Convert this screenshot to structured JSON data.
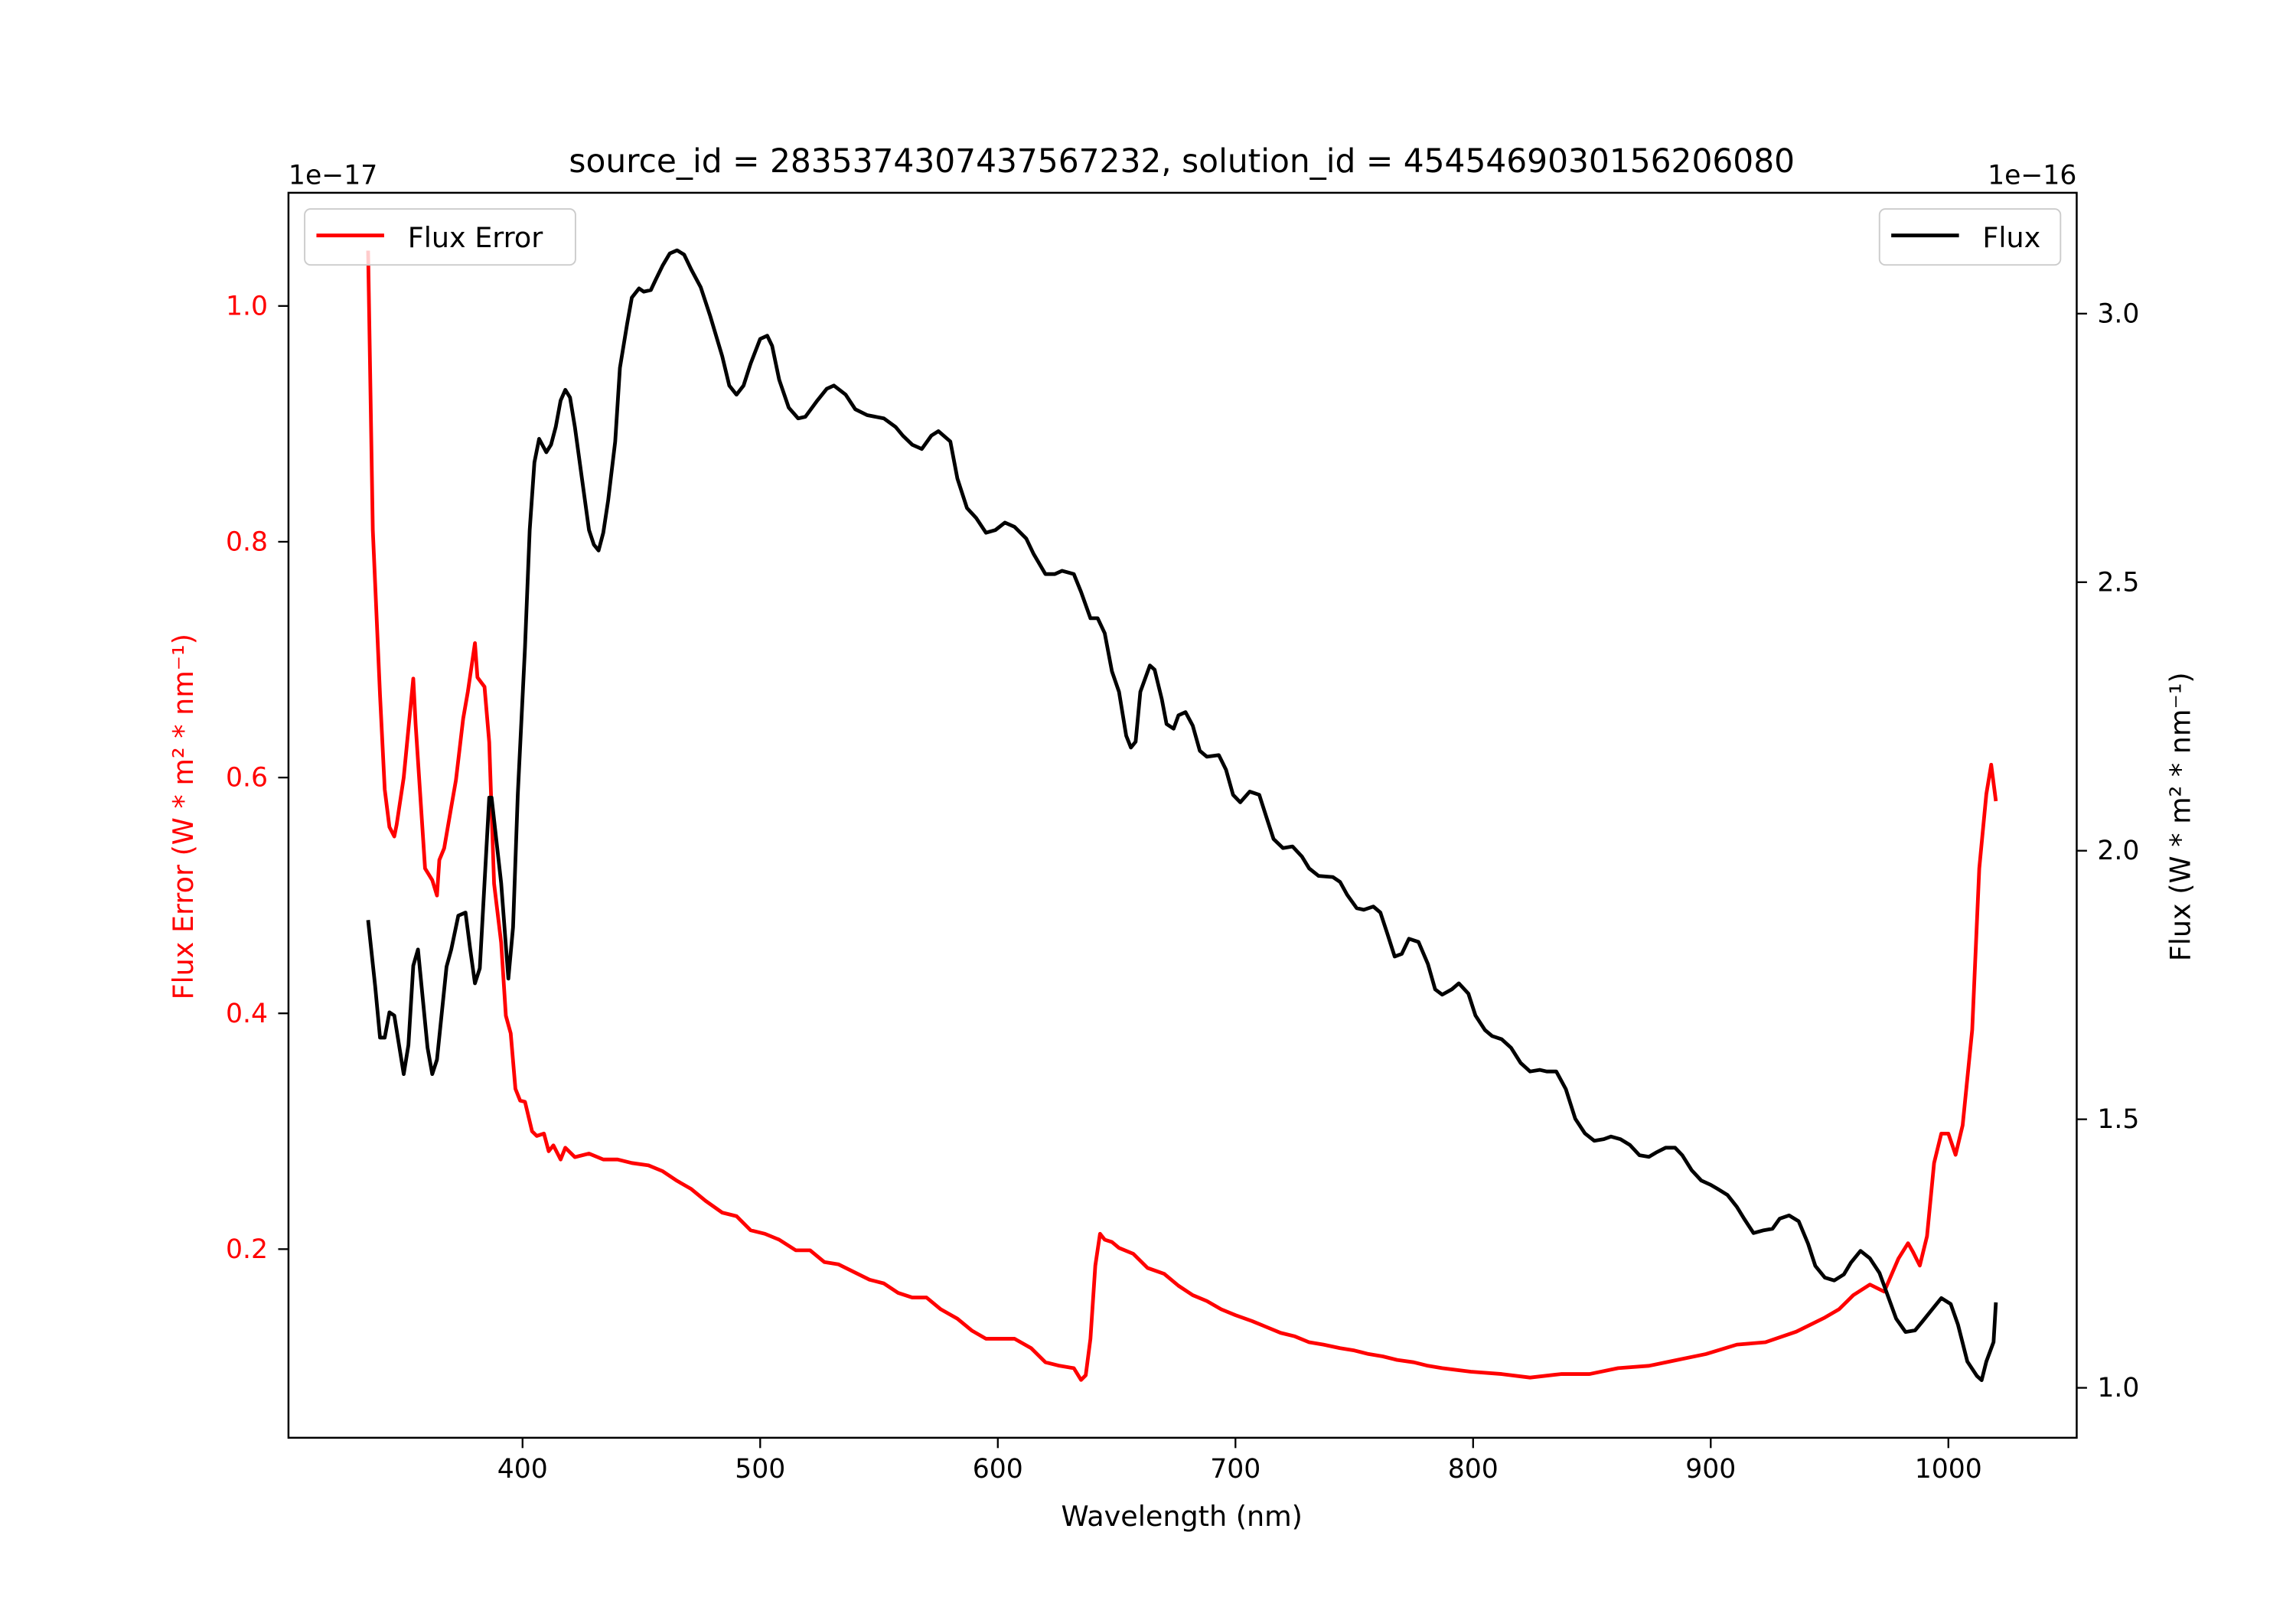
{
  "chart_data": {
    "type": "line",
    "title": "source_id = 2835374307437567232, solution_id = 4545469030156206080",
    "xlabel": "Wavelength (nm)",
    "ylabel_left": "Flux Error (W * m² * nm⁻¹)",
    "ylabel_right": "Flux (W * m² * nm⁻¹)",
    "offset_left": "1e−17",
    "offset_right": "1e−16",
    "xlim": [
      301.5,
      1054
    ],
    "ylim_left": [
      0.04,
      1.096
    ],
    "ylim_right": [
      0.907,
      3.225
    ],
    "x_ticks": [
      400,
      500,
      600,
      700,
      800,
      900,
      1000
    ],
    "x_tick_labels": [
      "400",
      "500",
      "600",
      "700",
      "800",
      "900",
      "1000"
    ],
    "left_ticks": [
      0.2,
      0.4,
      0.6,
      0.8,
      1.0
    ],
    "left_tick_labels": [
      "0.2",
      "0.4",
      "0.6",
      "0.8",
      "1.0"
    ],
    "right_ticks": [
      1.0,
      1.5,
      2.0,
      2.5,
      3.0
    ],
    "right_tick_labels": [
      "1.0",
      "1.5",
      "2.0",
      "2.5",
      "3.0"
    ],
    "grid": false,
    "legend_left": {
      "label": "Flux Error",
      "placement": "upper-left"
    },
    "legend_right": {
      "label": "Flux",
      "placement": "upper-right"
    },
    "series": [
      {
        "name": "Flux Error",
        "axis": "left",
        "color": "#ff0000",
        "x": [
          335,
          337,
          340,
          342,
          344,
          346,
          347,
          350,
          354,
          355,
          359,
          362,
          364,
          365,
          367,
          370,
          372,
          375,
          377,
          380,
          381,
          384,
          386,
          388,
          391,
          393,
          395,
          397,
          399,
          401,
          404,
          406,
          409,
          411,
          413,
          416,
          418,
          422,
          428,
          434,
          440,
          446,
          453,
          459,
          465,
          471,
          477,
          484,
          490,
          496,
          502,
          508,
          515,
          521,
          527,
          533,
          539,
          546,
          552,
          558,
          564,
          570,
          576,
          583,
          589,
          595,
          601,
          607,
          614,
          620,
          626,
          632,
          635,
          637,
          639,
          641,
          643,
          645,
          648,
          651,
          657,
          663,
          670,
          676,
          682,
          688,
          694,
          700,
          707,
          713,
          719,
          725,
          731,
          737,
          744,
          750,
          756,
          762,
          768,
          775,
          781,
          787,
          799,
          812,
          824,
          837,
          849,
          861,
          874,
          886,
          898,
          911,
          923,
          936,
          948,
          954,
          960,
          967,
          973,
          979,
          983,
          985,
          988,
          991,
          994,
          997,
          1000,
          1003,
          1006,
          1010,
          1013,
          1016,
          1018,
          1020
        ],
        "y": [
          1.047,
          0.81,
          0.67,
          0.59,
          0.558,
          0.55,
          0.56,
          0.6,
          0.684,
          0.645,
          0.523,
          0.513,
          0.5,
          0.53,
          0.54,
          0.575,
          0.598,
          0.65,
          0.673,
          0.714,
          0.685,
          0.677,
          0.63,
          0.51,
          0.46,
          0.398,
          0.383,
          0.336,
          0.326,
          0.325,
          0.3,
          0.296,
          0.298,
          0.283,
          0.288,
          0.276,
          0.286,
          0.278,
          0.281,
          0.276,
          0.276,
          0.273,
          0.271,
          0.266,
          0.258,
          0.251,
          0.241,
          0.231,
          0.228,
          0.216,
          0.213,
          0.208,
          0.199,
          0.199,
          0.189,
          0.187,
          0.181,
          0.174,
          0.171,
          0.163,
          0.159,
          0.159,
          0.149,
          0.141,
          0.131,
          0.124,
          0.124,
          0.124,
          0.116,
          0.104,
          0.101,
          0.099,
          0.089,
          0.093,
          0.124,
          0.186,
          0.213,
          0.208,
          0.206,
          0.201,
          0.196,
          0.184,
          0.179,
          0.169,
          0.161,
          0.156,
          0.149,
          0.144,
          0.139,
          0.134,
          0.129,
          0.126,
          0.121,
          0.119,
          0.116,
          0.114,
          0.111,
          0.109,
          0.106,
          0.104,
          0.101,
          0.099,
          0.096,
          0.094,
          0.091,
          0.094,
          0.094,
          0.099,
          0.101,
          0.106,
          0.111,
          0.119,
          0.121,
          0.13,
          0.142,
          0.149,
          0.161,
          0.17,
          0.164,
          0.192,
          0.205,
          0.198,
          0.186,
          0.211,
          0.273,
          0.298,
          0.298,
          0.28,
          0.305,
          0.386,
          0.523,
          0.586,
          0.611,
          0.58
        ]
      },
      {
        "name": "Flux",
        "axis": "right",
        "color": "#000000",
        "x": [
          335,
          338,
          340,
          342,
          344,
          346,
          350,
          352,
          354,
          356,
          360,
          362,
          364,
          368,
          370,
          373,
          376,
          378,
          380,
          382,
          384,
          386,
          387,
          391,
          394,
          396,
          398,
          401,
          403,
          405,
          407,
          410,
          412,
          414,
          416,
          418,
          420,
          422,
          425,
          428,
          430,
          432,
          434,
          436,
          439,
          441,
          444,
          446,
          449,
          451,
          454,
          456,
          459,
          462,
          465,
          468,
          471,
          475,
          479,
          484,
          487,
          490,
          493,
          496,
          500,
          503,
          505,
          508,
          512,
          516,
          519,
          524,
          528,
          531,
          536,
          540,
          545,
          552,
          557,
          560,
          564,
          568,
          572,
          575,
          580,
          583,
          587,
          591,
          595,
          599,
          603,
          607,
          612,
          615,
          620,
          624,
          627,
          632,
          635,
          639,
          642,
          645,
          648,
          651,
          654,
          656,
          658,
          660,
          664,
          666,
          669,
          671,
          674,
          676,
          679,
          682,
          685,
          688,
          693,
          696,
          699,
          702,
          706,
          710,
          713,
          716,
          720,
          724,
          728,
          731,
          735,
          741,
          744,
          747,
          751,
          754,
          758,
          761,
          764,
          767,
          770,
          773,
          777,
          781,
          784,
          787,
          791,
          794,
          798,
          801,
          805,
          808,
          812,
          816,
          820,
          824,
          828,
          831,
          835,
          839,
          843,
          847,
          851,
          855,
          858,
          862,
          866,
          870,
          874,
          877,
          881,
          885,
          888,
          892,
          896,
          900,
          903,
          907,
          911,
          914,
          918,
          922,
          926,
          929,
          933,
          937,
          941,
          944,
          948,
          952,
          956,
          959,
          963,
          967,
          971,
          974,
          978,
          982,
          986,
          989,
          993,
          997,
          1001,
          1004,
          1008,
          1012,
          1014,
          1016,
          1019,
          1020
        ],
        "y": [
          1.871,
          1.748,
          1.652,
          1.652,
          1.699,
          1.693,
          1.584,
          1.638,
          1.786,
          1.816,
          1.633,
          1.584,
          1.611,
          1.784,
          1.816,
          1.879,
          1.885,
          1.816,
          1.753,
          1.781,
          1.94,
          2.099,
          2.099,
          1.94,
          1.762,
          1.858,
          2.104,
          2.378,
          2.597,
          2.723,
          2.767,
          2.742,
          2.756,
          2.789,
          2.838,
          2.858,
          2.844,
          2.789,
          2.693,
          2.597,
          2.57,
          2.559,
          2.592,
          2.652,
          2.762,
          2.899,
          2.981,
          3.03,
          3.047,
          3.041,
          3.044,
          3.063,
          3.09,
          3.112,
          3.118,
          3.11,
          3.082,
          3.049,
          2.995,
          2.921,
          2.866,
          2.849,
          2.866,
          2.907,
          2.953,
          2.959,
          2.94,
          2.877,
          2.825,
          2.805,
          2.808,
          2.838,
          2.86,
          2.866,
          2.849,
          2.822,
          2.811,
          2.805,
          2.789,
          2.773,
          2.756,
          2.748,
          2.773,
          2.781,
          2.762,
          2.693,
          2.638,
          2.619,
          2.592,
          2.597,
          2.611,
          2.603,
          2.581,
          2.553,
          2.515,
          2.515,
          2.521,
          2.515,
          2.482,
          2.433,
          2.433,
          2.405,
          2.334,
          2.296,
          2.214,
          2.192,
          2.203,
          2.296,
          2.345,
          2.337,
          2.282,
          2.236,
          2.227,
          2.252,
          2.258,
          2.233,
          2.186,
          2.175,
          2.178,
          2.151,
          2.104,
          2.09,
          2.11,
          2.104,
          2.063,
          2.022,
          2.005,
          2.008,
          1.989,
          1.967,
          1.953,
          1.951,
          1.942,
          1.918,
          1.893,
          1.89,
          1.896,
          1.885,
          1.844,
          1.803,
          1.808,
          1.836,
          1.83,
          1.789,
          1.742,
          1.732,
          1.742,
          1.753,
          1.734,
          1.693,
          1.666,
          1.655,
          1.649,
          1.633,
          1.605,
          1.589,
          1.592,
          1.589,
          1.589,
          1.556,
          1.501,
          1.474,
          1.46,
          1.463,
          1.468,
          1.463,
          1.452,
          1.433,
          1.43,
          1.438,
          1.447,
          1.447,
          1.433,
          1.405,
          1.386,
          1.378,
          1.37,
          1.359,
          1.337,
          1.315,
          1.288,
          1.293,
          1.296,
          1.315,
          1.321,
          1.31,
          1.268,
          1.227,
          1.205,
          1.2,
          1.211,
          1.233,
          1.255,
          1.241,
          1.214,
          1.178,
          1.129,
          1.104,
          1.107,
          1.123,
          1.145,
          1.167,
          1.156,
          1.118,
          1.049,
          1.022,
          1.014,
          1.049,
          1.085,
          1.159
        ]
      }
    ]
  }
}
